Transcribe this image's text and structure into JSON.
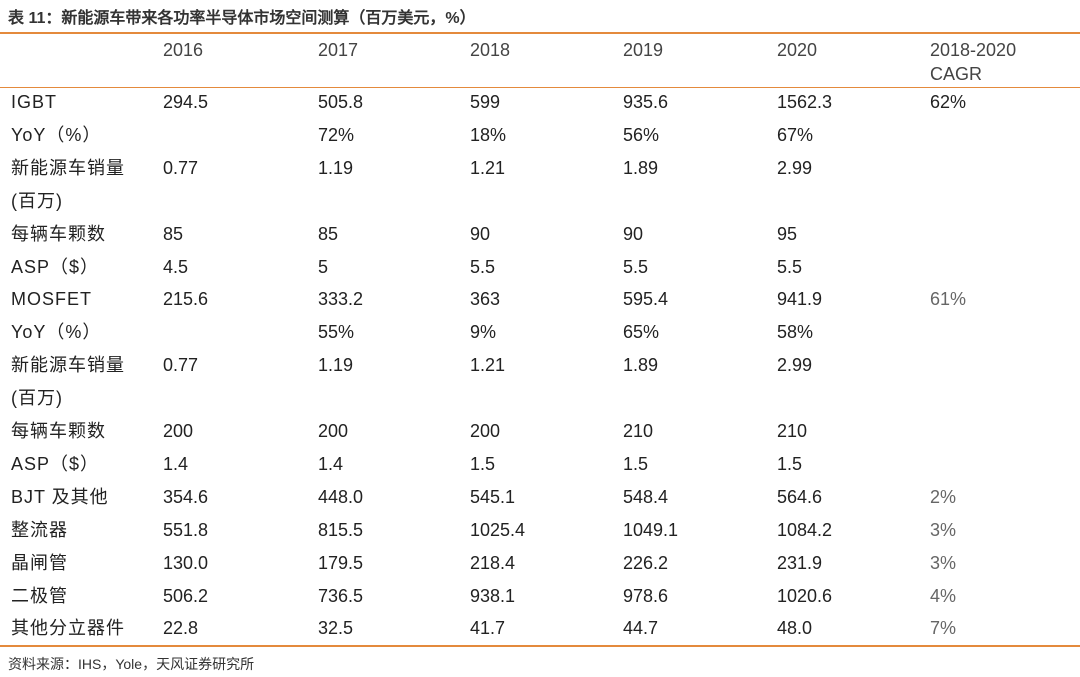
{
  "title": "表 11：新能源车带来各功率半导体市场空间测算（百万美元，%）",
  "headers": [
    "2016",
    "2017",
    "2018",
    "2019",
    "2020",
    "2018-2020",
    "CAGR"
  ],
  "rows": [
    {
      "label": "IGBT",
      "values": [
        "294.5",
        "505.8",
        "599",
        "935.6",
        "1562.3",
        "62%"
      ]
    },
    {
      "label": "YoY（%）",
      "values": [
        "",
        "72%",
        "18%",
        "56%",
        "67%",
        ""
      ]
    },
    {
      "label": "新能源车销量",
      "values": [
        "0.77",
        "1.19",
        "1.21",
        "1.89",
        "2.99",
        ""
      ]
    },
    {
      "label": "(百万)",
      "values": [
        "",
        "",
        "",
        "",
        "",
        ""
      ]
    },
    {
      "label": "每辆车颗数",
      "values": [
        "85",
        "85",
        "90",
        "90",
        "95",
        ""
      ]
    },
    {
      "label": "ASP（$）",
      "values": [
        "4.5",
        "5",
        "5.5",
        "5.5",
        "5.5",
        ""
      ]
    },
    {
      "label": "MOSFET",
      "values": [
        "215.6",
        "333.2",
        "363",
        "595.4",
        "941.9",
        "61%"
      ]
    },
    {
      "label": "YoY（%）",
      "values": [
        "",
        "55%",
        "9%",
        "65%",
        "58%",
        ""
      ]
    },
    {
      "label": "新能源车销量",
      "values": [
        "0.77",
        "1.19",
        "1.21",
        "1.89",
        "2.99",
        ""
      ]
    },
    {
      "label": "(百万)",
      "values": [
        "",
        "",
        "",
        "",
        "",
        ""
      ]
    },
    {
      "label": "每辆车颗数",
      "values": [
        "200",
        "200",
        "200",
        "210",
        "210",
        ""
      ]
    },
    {
      "label": "ASP（$）",
      "values": [
        "1.4",
        "1.4",
        "1.5",
        "1.5",
        "1.5",
        ""
      ]
    },
    {
      "label": "BJT 及其他",
      "values": [
        "354.6",
        "448.0",
        "545.1",
        "548.4",
        "564.6",
        "2%"
      ]
    },
    {
      "label": "整流器",
      "values": [
        "551.8",
        "815.5",
        "1025.4",
        "1049.1",
        "1084.2",
        "3%"
      ]
    },
    {
      "label": "晶闸管",
      "values": [
        "130.0",
        "179.5",
        "218.4",
        "226.2",
        "231.9",
        "3%"
      ]
    },
    {
      "label": "二极管",
      "values": [
        "506.2",
        "736.5",
        "938.1",
        "978.6",
        "1020.6",
        "4%"
      ]
    },
    {
      "label": "其他分立器件",
      "values": [
        "22.8",
        "32.5",
        "41.7",
        "44.7",
        "48.0",
        "7%"
      ]
    }
  ],
  "source": "资料来源：IHS，Yole，天风证券研究所"
}
